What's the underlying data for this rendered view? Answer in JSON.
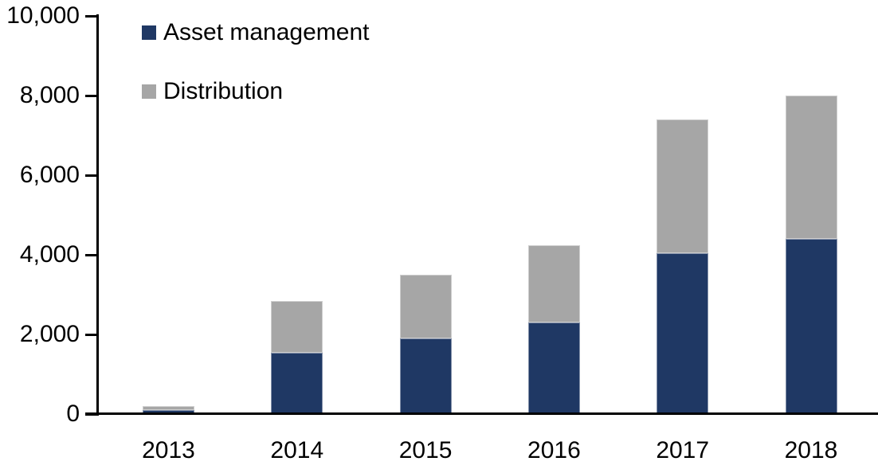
{
  "chart_data": {
    "type": "bar",
    "stacked": true,
    "title": "",
    "xlabel": "",
    "ylabel": "",
    "categories": [
      "2013",
      "2014",
      "2015",
      "2016",
      "2017",
      "2018"
    ],
    "series": [
      {
        "name": "Asset management",
        "color": "#1F3864",
        "values": [
          100,
          1550,
          1900,
          2300,
          4050,
          4400
        ]
      },
      {
        "name": "Distribution",
        "color": "#A6A6A6",
        "values": [
          100,
          1300,
          1600,
          1950,
          3350,
          3600
        ]
      }
    ],
    "totals": [
      200,
      2850,
      3500,
      4250,
      7400,
      8000
    ],
    "ylim": [
      0,
      10000
    ],
    "y_tick_values": [
      0,
      2000,
      4000,
      6000,
      8000,
      10000
    ],
    "y_tick_labels": [
      "0",
      "2,000",
      "4,000",
      "6,000",
      "8,000",
      "10,000"
    ],
    "grid": false,
    "legend_position": "top-left",
    "axis_color": "#000000",
    "text_color": "#000000"
  }
}
